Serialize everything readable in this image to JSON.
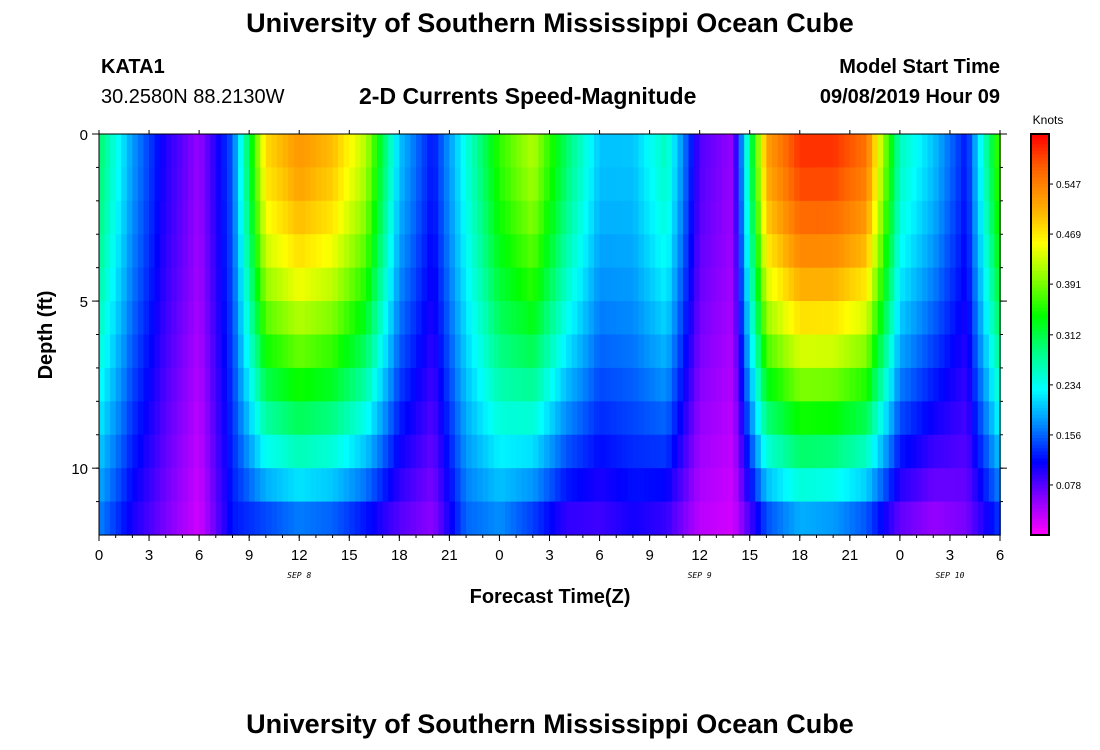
{
  "header": {
    "title": "University of Southern Mississippi Ocean Cube",
    "station_id": "KATA1",
    "station_coords": "30.2580N 88.2130W",
    "chart_title": "2-D Currents Speed-Magnitude",
    "model_label": "Model Start Time",
    "model_time": "09/08/2019 Hour 09"
  },
  "footer": {
    "title": "University of Southern Mississippi Ocean Cube"
  },
  "colors": {
    "palette": [
      "#ff00ff",
      "#8800ff",
      "#0000ff",
      "#0088ff",
      "#00ffff",
      "#00ff88",
      "#00ff00",
      "#88ff00",
      "#ffff00",
      "#ffaa00",
      "#ff6600",
      "#ff0000"
    ]
  },
  "chart_data": {
    "type": "heatmap",
    "title": "2-D Currents Speed-Magnitude",
    "xlabel": "Forecast Time(Z)",
    "ylabel": "Depth (ft)",
    "x_hours_from_start": [
      0,
      2,
      4,
      6,
      8,
      10,
      12,
      14,
      16,
      18,
      20,
      22,
      24,
      26,
      28,
      30,
      32,
      34,
      36,
      38,
      40,
      42,
      44,
      46,
      48,
      50,
      52,
      54
    ],
    "x_tick_labels": [
      "0",
      "3",
      "6",
      "9",
      "12",
      "15",
      "18",
      "21",
      "0",
      "3",
      "6",
      "9",
      "12",
      "15",
      "18",
      "21",
      "0",
      "3",
      "6"
    ],
    "x_range_hours": [
      0,
      54
    ],
    "date_labels": [
      {
        "text": "SEP 8",
        "hour": 12
      },
      {
        "text": "SEP 9",
        "hour": 36
      },
      {
        "text": "SEP 10",
        "hour": 51
      }
    ],
    "y_tick_labels": [
      "0",
      "5",
      "10"
    ],
    "y_range_ft": [
      0,
      12
    ],
    "colorbar": {
      "unit": "Knots",
      "range": [
        0.0,
        0.625
      ],
      "tick_labels": [
        "0.547",
        "0.469",
        "0.391",
        "0.312",
        "0.234",
        "0.156",
        "0.078"
      ],
      "tick_values": [
        0.547,
        0.469,
        0.391,
        0.312,
        0.234,
        0.156,
        0.078
      ]
    },
    "surface_profile_knots": [
      0.3,
      0.18,
      0.1,
      0.05,
      0.15,
      0.48,
      0.53,
      0.5,
      0.42,
      0.2,
      0.12,
      0.24,
      0.36,
      0.42,
      0.3,
      0.2,
      0.2,
      0.26,
      0.08,
      0.05,
      0.52,
      0.6,
      0.6,
      0.56,
      0.26,
      0.2,
      0.12,
      0.38
    ],
    "bottom_profile_knots": [
      0.16,
      0.1,
      0.06,
      0.02,
      0.12,
      0.12,
      0.14,
      0.13,
      0.1,
      0.07,
      0.05,
      0.15,
      0.16,
      0.12,
      0.08,
      0.08,
      0.1,
      0.08,
      0.03,
      0.02,
      0.12,
      0.16,
      0.15,
      0.12,
      0.06,
      0.04,
      0.06,
      0.12
    ]
  }
}
